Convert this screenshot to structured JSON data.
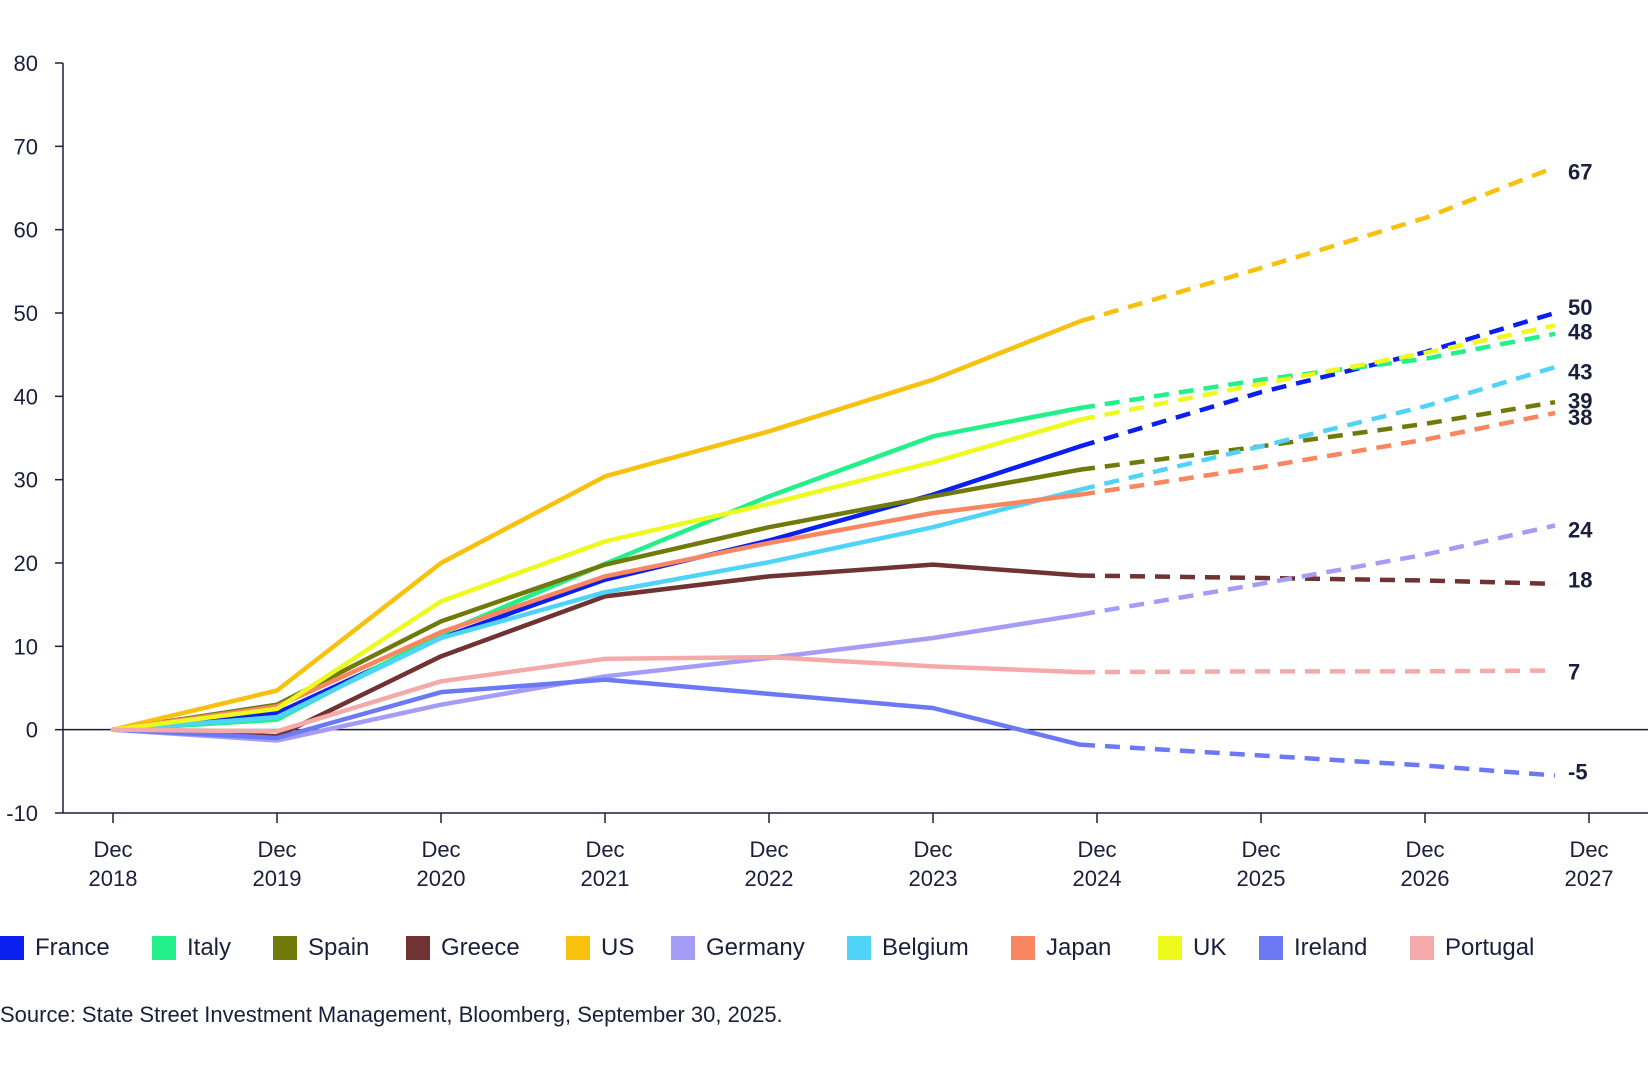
{
  "chart_data": {
    "type": "line",
    "x": [
      "Dec 2018",
      "Dec 2019",
      "Dec 2020",
      "Dec 2021",
      "Dec 2022",
      "Dec 2023",
      "Dec 2024",
      "Dec 2025",
      "Dec 2026",
      "Dec 2027"
    ],
    "x_tick_lines": [
      [
        "Dec",
        "2018"
      ],
      [
        "Dec",
        "2019"
      ],
      [
        "Dec",
        "2020"
      ],
      [
        "Dec",
        "2021"
      ],
      [
        "Dec",
        "2022"
      ],
      [
        "Dec",
        "2023"
      ],
      [
        "Dec",
        "2024"
      ],
      [
        "Dec",
        "2025"
      ],
      [
        "Dec",
        "2026"
      ],
      [
        "Dec",
        "2027"
      ]
    ],
    "ylim": [
      -10,
      80
    ],
    "yticks": [
      -10,
      0,
      10,
      20,
      30,
      40,
      50,
      60,
      70,
      80
    ],
    "grid": false,
    "legend_position": "bottom",
    "line_style": "solid through Dec 2024, dashed thereafter",
    "series": [
      {
        "name": "France",
        "color": "#0a1ff0",
        "end_label": "50",
        "values": [
          0,
          2,
          11,
          18,
          22.7,
          28.2,
          34,
          40.5,
          45.3,
          50
        ]
      },
      {
        "name": "Italy",
        "color": "#22f08a",
        "end_label": "48",
        "values": [
          0,
          1.2,
          11.5,
          19.9,
          28,
          35.2,
          38.6,
          42,
          44.5,
          47.5
        ]
      },
      {
        "name": "Spain",
        "color": "#6f7a0b",
        "end_label": "39",
        "values": [
          0,
          3,
          13,
          19.8,
          24.3,
          28,
          31.2,
          34,
          36.7,
          39.3
        ]
      },
      {
        "name": "Greece",
        "color": "#703232",
        "end_label": "18",
        "values": [
          0,
          -0.8,
          8.8,
          16,
          18.4,
          19.8,
          18.5,
          18.2,
          17.9,
          17.5
        ]
      },
      {
        "name": "US",
        "color": "#f7c10e",
        "end_label": "67",
        "values": [
          0,
          4.7,
          20,
          30.4,
          35.8,
          42,
          49,
          55.4,
          61.4,
          67.5
        ]
      },
      {
        "name": "Germany",
        "color": "#a59cf5",
        "end_label": "24",
        "values": [
          0,
          -1.3,
          3,
          6.4,
          8.6,
          11,
          13.8,
          17.5,
          21,
          24.5
        ]
      },
      {
        "name": "Belgium",
        "color": "#4fd4f7",
        "end_label": "43",
        "values": [
          0,
          1.5,
          11,
          16.5,
          20.1,
          24.3,
          28.8,
          34,
          38.8,
          43.5
        ]
      },
      {
        "name": "Japan",
        "color": "#f98661",
        "end_label": "38",
        "values": [
          0,
          2.8,
          11.7,
          18.4,
          22.4,
          26,
          28.2,
          31.5,
          34.8,
          38
        ]
      },
      {
        "name": "UK",
        "color": "#eefa1c",
        "end_label": null,
        "values": [
          0,
          2.5,
          15.4,
          22.6,
          27.1,
          32.1,
          37.2,
          41.5,
          45.2,
          48.5
        ]
      },
      {
        "name": "Ireland",
        "color": "#6b79f5",
        "end_label": "-5",
        "values": [
          0,
          -1,
          4.5,
          6,
          4.3,
          2.6,
          -1.8,
          -3.1,
          -4.3,
          -5.5
        ]
      },
      {
        "name": "Portugal",
        "color": "#f3aaa9",
        "end_label": "7",
        "values": [
          0,
          -0.2,
          5.8,
          8.5,
          8.7,
          7.6,
          6.9,
          7,
          7,
          7.1
        ]
      }
    ]
  },
  "source": "Source: State Street Investment Management, Bloomberg, September 30, 2025."
}
